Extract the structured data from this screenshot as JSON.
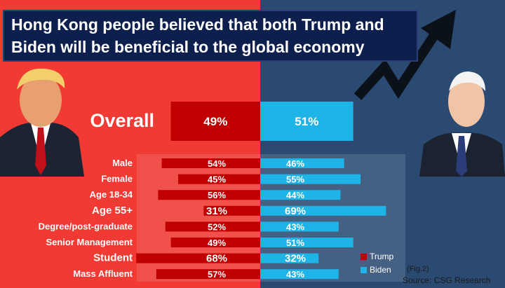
{
  "title": {
    "line1": "Hong Kong people believed that both Trump and",
    "line2": "Biden will be beneficial to the global economy"
  },
  "fig_label": "(Fig.2)",
  "source": "Source: CSG Research",
  "colors": {
    "left_bg": "#f03a33",
    "right_bg": "#2b4a72",
    "trump": "#c00000",
    "biden": "#1fb4e8",
    "label_text": "#ffffff"
  },
  "icons": {
    "left": "trump-portrait-icon",
    "right": "biden-portrait-icon",
    "arrow": "rising-arrow-icon"
  },
  "chart_data": {
    "type": "bar",
    "orientation": "horizontal-diverging",
    "categories": [
      "Male",
      "Female",
      "Age 18-34",
      "Age 55+",
      "Degree/post-graduate",
      "Senior Management",
      "Student",
      "Mass Affluent"
    ],
    "overall": {
      "label": "Overall",
      "trump": 49,
      "biden": 51
    },
    "series": [
      {
        "name": "Trump",
        "values": [
          54,
          45,
          56,
          31,
          52,
          49,
          68,
          57
        ]
      },
      {
        "name": "Biden",
        "values": [
          46,
          55,
          44,
          69,
          43,
          51,
          32,
          43
        ]
      }
    ],
    "value_suffix": "%",
    "emphasized_categories": [
      "Age 55+",
      "Student"
    ],
    "legend": {
      "position": "bottom-right",
      "entries": [
        "Trump",
        "Biden"
      ]
    }
  }
}
